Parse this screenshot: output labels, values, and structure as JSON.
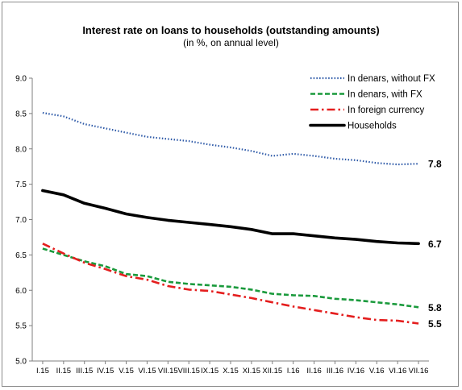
{
  "chart_data": {
    "type": "line",
    "title": "Interest rate on loans to households (outstanding amounts)",
    "subtitle": "(in %, on annual level)",
    "xlabel": "",
    "ylabel": "",
    "ylim": [
      5.0,
      9.0
    ],
    "yticks": [
      "9.0",
      "8.5",
      "8.0",
      "7.5",
      "7.0",
      "6.5",
      "6.0",
      "5.5",
      "5.0"
    ],
    "grid": false,
    "legend": "top-right",
    "categories": [
      "I.15",
      "II.15",
      "III.15",
      "IV.15",
      "V.15",
      "VI.15",
      "VII.15",
      "VIII.15",
      "IX.15",
      "X.15",
      "XI.15",
      "XII.15",
      "I.16",
      "II.16",
      "III.16",
      "IV.16",
      "V.16",
      "VI.16",
      "VII.16"
    ],
    "series": [
      {
        "name": "In denars, without FX",
        "color": "#2e5aa8",
        "style": "dotted",
        "values": [
          8.51,
          8.46,
          8.35,
          8.29,
          8.23,
          8.17,
          8.14,
          8.11,
          8.06,
          8.02,
          7.97,
          7.9,
          7.93,
          7.9,
          7.86,
          7.84,
          7.8,
          7.78,
          7.79
        ],
        "end_label": "7.8"
      },
      {
        "name": "In denars, with FX",
        "color": "#1a9a3c",
        "style": "dashed",
        "values": [
          6.59,
          6.5,
          6.41,
          6.34,
          6.23,
          6.2,
          6.12,
          6.09,
          6.07,
          6.05,
          6.01,
          5.95,
          5.93,
          5.92,
          5.88,
          5.86,
          5.83,
          5.8,
          5.76
        ],
        "end_label": "5.8"
      },
      {
        "name": "In foreign currency",
        "color": "#e41e1e",
        "style": "dashdot",
        "values": [
          6.66,
          6.52,
          6.39,
          6.3,
          6.2,
          6.15,
          6.06,
          6.01,
          5.99,
          5.94,
          5.89,
          5.83,
          5.77,
          5.72,
          5.67,
          5.62,
          5.58,
          5.57,
          5.53
        ],
        "end_label": "5.5"
      },
      {
        "name": "Households",
        "color": "#000000",
        "style": "solid",
        "values": [
          7.41,
          7.35,
          7.23,
          7.16,
          7.08,
          7.03,
          6.99,
          6.96,
          6.93,
          6.9,
          6.86,
          6.8,
          6.8,
          6.77,
          6.74,
          6.72,
          6.69,
          6.67,
          6.66
        ],
        "end_label": "6.7"
      }
    ]
  }
}
